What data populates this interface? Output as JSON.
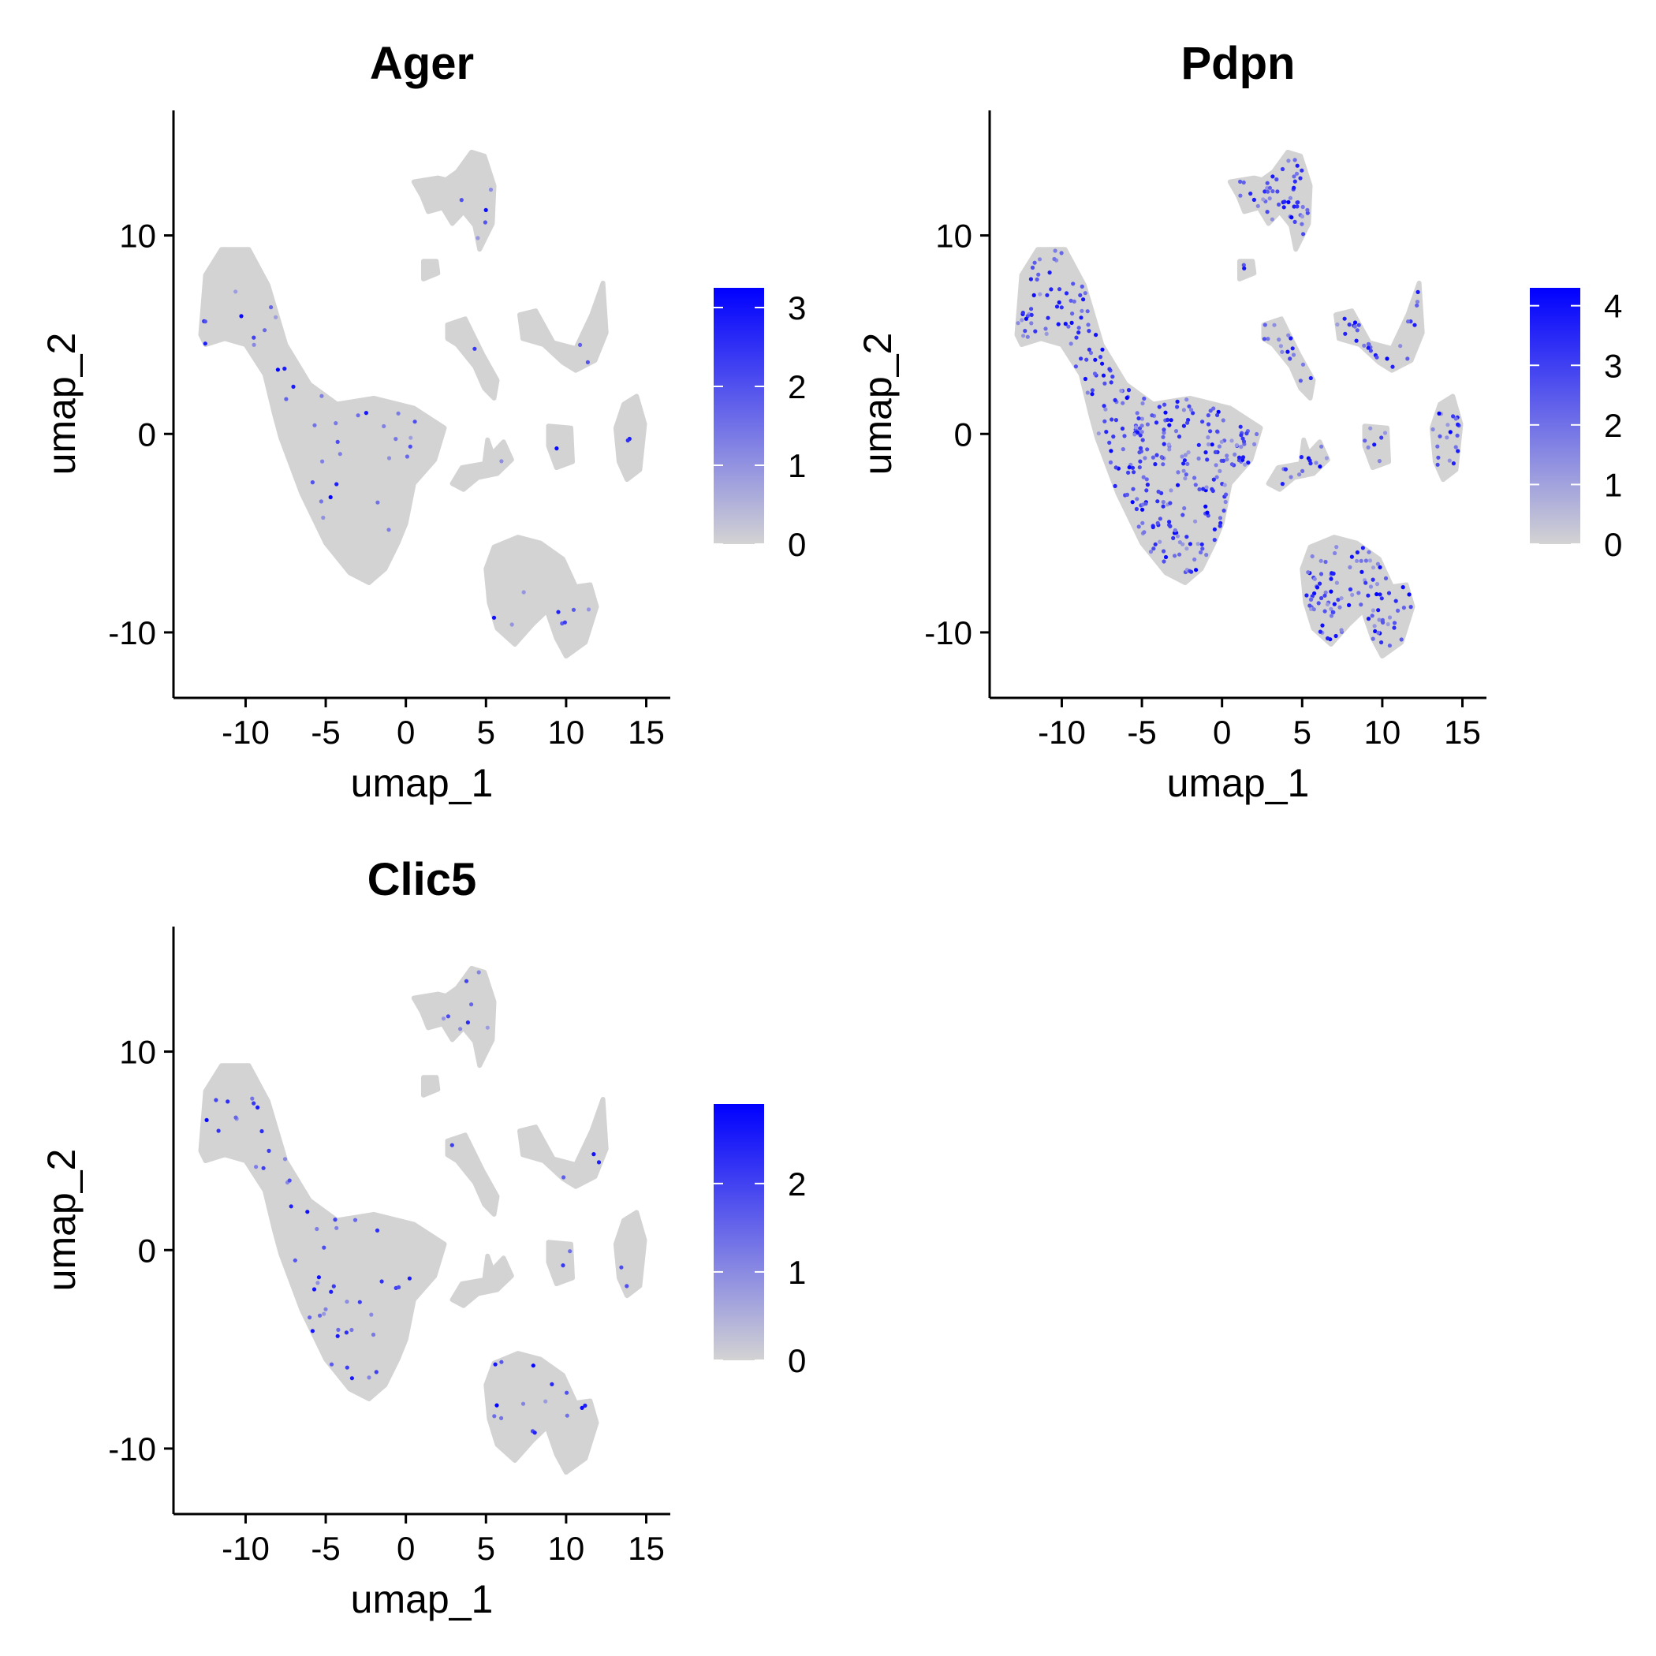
{
  "chart_data": [
    {
      "type": "scatter",
      "title": "Ager",
      "xlabel": "umap_1",
      "ylabel": "umap_2",
      "xlim": [
        -14.5,
        16.5
      ],
      "ylim": [
        -13.3,
        16.3
      ],
      "xticks": [
        -10,
        -5,
        0,
        5,
        10,
        15
      ],
      "yticks": [
        -10,
        0,
        10
      ],
      "grid": false,
      "legend": {
        "placement": "right",
        "type": "colorbar",
        "min": 0,
        "max": 3.25,
        "ticks": [
          0,
          1,
          2,
          3
        ]
      },
      "color_low": "#d3d3d3",
      "color_high": "#0000ff",
      "expression_level": 0.06
    },
    {
      "type": "scatter",
      "title": "Pdpn",
      "xlabel": "umap_1",
      "ylabel": "umap_2",
      "xlim": [
        -14.5,
        16.5
      ],
      "ylim": [
        -13.3,
        16.3
      ],
      "xticks": [
        -10,
        -5,
        0,
        5,
        10,
        15
      ],
      "yticks": [
        -10,
        0,
        10
      ],
      "grid": false,
      "legend": {
        "placement": "right",
        "type": "colorbar",
        "min": 0,
        "max": 4.3,
        "ticks": [
          0,
          1,
          2,
          3,
          4
        ]
      },
      "color_low": "#d3d3d3",
      "color_high": "#0000ff",
      "expression_level": 0.55
    },
    {
      "type": "scatter",
      "title": "Clic5",
      "xlabel": "umap_1",
      "ylabel": "umap_2",
      "xlim": [
        -14.5,
        16.5
      ],
      "ylim": [
        -13.3,
        16.3
      ],
      "xticks": [
        -10,
        -5,
        0,
        5,
        10,
        15
      ],
      "yticks": [
        -10,
        0,
        10
      ],
      "grid": false,
      "legend": {
        "placement": "right",
        "type": "colorbar",
        "min": 0,
        "max": 2.9,
        "ticks": [
          0,
          1,
          2
        ]
      },
      "color_low": "#d3d3d3",
      "color_high": "#0000ff",
      "expression_level": 0.08
    }
  ],
  "clusters": [
    {
      "id": "main",
      "outline": [
        [
          -12.8,
          5
        ],
        [
          -12.5,
          8
        ],
        [
          -11.5,
          9.3
        ],
        [
          -9.8,
          9.3
        ],
        [
          -8.6,
          7.5
        ],
        [
          -7.5,
          4.5
        ],
        [
          -6,
          2.5
        ],
        [
          -4.3,
          1.5
        ],
        [
          -2,
          1.8
        ],
        [
          0.5,
          1.3
        ],
        [
          2.4,
          0.3
        ],
        [
          1.8,
          -1.3
        ],
        [
          0.5,
          -2.5
        ],
        [
          0,
          -4.5
        ],
        [
          -0.5,
          -5.5
        ],
        [
          -1.3,
          -6.8
        ],
        [
          -2.3,
          -7.5
        ],
        [
          -3.5,
          -7
        ],
        [
          -5,
          -5.5
        ],
        [
          -6.5,
          -3
        ],
        [
          -7.8,
          -0.2
        ],
        [
          -8.2,
          1
        ],
        [
          -8.8,
          3
        ],
        [
          -10,
          4.5
        ],
        [
          -11.3,
          4.8
        ],
        [
          -12.5,
          4.5
        ]
      ]
    },
    {
      "id": "top-right",
      "outline": [
        [
          2.5,
          12.8
        ],
        [
          3.2,
          13.2
        ],
        [
          4.1,
          14.2
        ],
        [
          4.9,
          14.0
        ],
        [
          5.5,
          12.5
        ],
        [
          5.4,
          10.6
        ],
        [
          4.6,
          9.3
        ],
        [
          4.3,
          10.5
        ],
        [
          3.6,
          11.2
        ],
        [
          2.9,
          10.6
        ],
        [
          2.3,
          11.4
        ],
        [
          1.4,
          11.2
        ],
        [
          1,
          12
        ],
        [
          0.5,
          12.7
        ],
        [
          2,
          12.9
        ]
      ]
    },
    {
      "id": "small-square",
      "outline": [
        [
          1.1,
          8.7
        ],
        [
          1.9,
          8.7
        ],
        [
          2.0,
          8.1
        ],
        [
          1.1,
          7.8
        ]
      ]
    },
    {
      "id": "diagonal",
      "outline": [
        [
          2.6,
          5.5
        ],
        [
          3.7,
          5.8
        ],
        [
          4.8,
          4
        ],
        [
          5.7,
          2.7
        ],
        [
          5.5,
          1.8
        ],
        [
          4.9,
          2.3
        ],
        [
          4.3,
          3.4
        ],
        [
          3.2,
          4.5
        ],
        [
          2.6,
          4.8
        ]
      ]
    },
    {
      "id": "small-v",
      "outline": [
        [
          2.9,
          -2.5
        ],
        [
          3.5,
          -1.7
        ],
        [
          4.9,
          -1.5
        ],
        [
          5.1,
          -0.3
        ],
        [
          5.4,
          -1
        ],
        [
          6.1,
          -0.4
        ],
        [
          6.6,
          -1.3
        ],
        [
          5.7,
          -2
        ],
        [
          4.5,
          -2.2
        ],
        [
          3.6,
          -2.8
        ]
      ]
    },
    {
      "id": "wing-right",
      "outline": [
        [
          7.1,
          6.0
        ],
        [
          8.1,
          6.2
        ],
        [
          9.2,
          4.6
        ],
        [
          10.6,
          4.3
        ],
        [
          11.6,
          6
        ],
        [
          12.3,
          7.6
        ],
        [
          12.5,
          5.1
        ],
        [
          11.8,
          3.7
        ],
        [
          10.6,
          3.2
        ],
        [
          9.8,
          3.6
        ],
        [
          8.6,
          4.5
        ],
        [
          7.3,
          4.8
        ]
      ]
    },
    {
      "id": "small-blob",
      "outline": [
        [
          8.9,
          0.4
        ],
        [
          10.3,
          0.3
        ],
        [
          10.4,
          -1.4
        ],
        [
          9.4,
          -1.7
        ],
        [
          8.9,
          -0.6
        ]
      ]
    },
    {
      "id": "elongated",
      "outline": [
        [
          13.1,
          0.3
        ],
        [
          13.6,
          1.5
        ],
        [
          14.4,
          1.9
        ],
        [
          14.9,
          0.5
        ],
        [
          14.6,
          -1.8
        ],
        [
          13.8,
          -2.3
        ],
        [
          13.3,
          -1.4
        ]
      ]
    },
    {
      "id": "bottom-cluster",
      "outline": [
        [
          5,
          -6.8
        ],
        [
          5.5,
          -5.7
        ],
        [
          7,
          -5.2
        ],
        [
          8.4,
          -5.5
        ],
        [
          9.8,
          -6.3
        ],
        [
          10.6,
          -7.7
        ],
        [
          11.5,
          -7.6
        ],
        [
          11.9,
          -8.7
        ],
        [
          11.2,
          -10.5
        ],
        [
          10,
          -11.2
        ],
        [
          9.4,
          -10.3
        ],
        [
          8.8,
          -8.9
        ],
        [
          7.9,
          -9.6
        ],
        [
          6.8,
          -10.6
        ],
        [
          5.7,
          -9.8
        ],
        [
          5.2,
          -8.5
        ]
      ]
    }
  ]
}
